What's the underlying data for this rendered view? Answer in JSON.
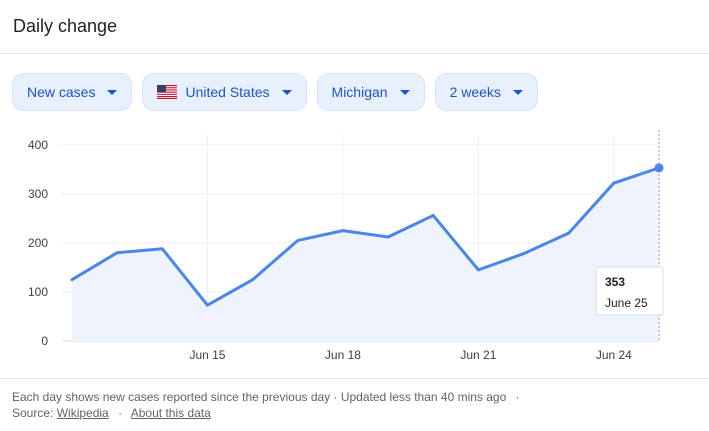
{
  "header": {
    "title": "Daily change"
  },
  "filters": [
    {
      "label": "New cases"
    },
    {
      "label": "United States",
      "icon": "us-flag-icon"
    },
    {
      "label": "Michigan"
    },
    {
      "label": "2 weeks"
    }
  ],
  "colors": {
    "line": "#4a86e8",
    "fill": "#eef3fd",
    "chip_bg": "#e8f0fe",
    "chip_text": "#1a55c7"
  },
  "chart_data": {
    "type": "area",
    "x": [
      "Jun 12",
      "Jun 13",
      "Jun 14",
      "Jun 15",
      "Jun 16",
      "Jun 17",
      "Jun 18",
      "Jun 19",
      "Jun 20",
      "Jun 21",
      "Jun 22",
      "Jun 23",
      "Jun 24",
      "Jun 25"
    ],
    "values": [
      125,
      180,
      188,
      73,
      125,
      205,
      225,
      212,
      256,
      145,
      178,
      220,
      322,
      353
    ],
    "xticks": [
      "Jun 15",
      "Jun 18",
      "Jun 21",
      "Jun 24"
    ],
    "yticks": [
      0,
      100,
      200,
      300,
      400
    ],
    "ylim": [
      0,
      420
    ],
    "grid": true,
    "tooltip": {
      "value": "353",
      "date": "June 25"
    }
  },
  "footer": {
    "description": "Each day shows new cases reported since the previous day · Updated less than 40 mins ago",
    "source_label": "Source:",
    "source_link": "Wikipedia",
    "about_link": "About this data"
  }
}
